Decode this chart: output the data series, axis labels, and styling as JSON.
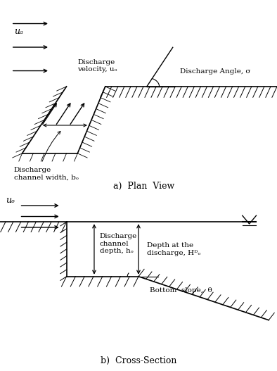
{
  "bg_color": "#ffffff",
  "line_color": "#000000",
  "title_a": "a)  Plan  View",
  "title_b": "b)  Cross-Section",
  "label_ua": "uₐ",
  "label_u0_plan": "Discharge\nvelocity, uₒ",
  "label_width": "Discharge\nchannel width, bₒ",
  "label_angle": "Discharge Angle, σ",
  "label_u0_cs": "uₒ",
  "label_depth_h0": "Discharge\nchannel\ndepth, hₒ",
  "label_depth_H": "Depth at the\ndischarge, Hᴰₒ",
  "label_slope": "Bottom  slope,  θ",
  "fontsize": 8,
  "fontsize_label": 7.5,
  "fontsize_title": 9
}
